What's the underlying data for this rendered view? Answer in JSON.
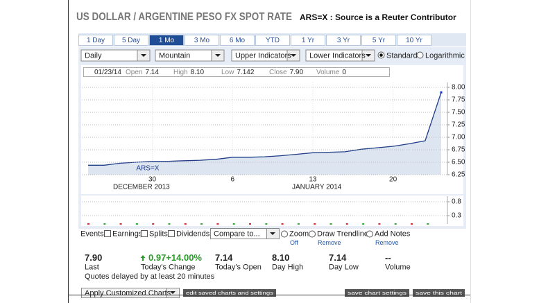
{
  "header": {
    "title": "US DOLLAR / ARGENTINE PESO FX SPOT RATE",
    "subtitle": "ARS=X : Source is a Reuter Contributor"
  },
  "ranges": [
    "1 Day",
    "5 Day",
    "1 Mo",
    "3 Mo",
    "6 Mo",
    "YTD",
    "1 Yr",
    "3 Yr",
    "5 Yr",
    "10 Yr"
  ],
  "selected_range_index": 2,
  "controls": {
    "frequency": "Daily",
    "chart_type": "Mountain",
    "upper": "Upper Indicators",
    "lower": "Lower Indicators",
    "scale_options": [
      "Standard",
      "Logarithmic"
    ]
  },
  "quote_bar": {
    "date": "01/23/14",
    "fields": [
      {
        "label": "Open",
        "value": "7.14"
      },
      {
        "label": "High",
        "value": "8.10"
      },
      {
        "label": "Low",
        "value": "7.142"
      },
      {
        "label": "Close",
        "value": "7.90"
      },
      {
        "label": "Volume",
        "value": "0"
      }
    ]
  },
  "chart_data": [
    {
      "type": "area",
      "series": [
        {
          "name": "ARS=X",
          "color": "#1f3c88",
          "values": [
            6.44,
            6.44,
            6.48,
            6.5,
            6.52,
            6.52,
            6.53,
            6.54,
            6.56,
            6.6,
            6.6,
            6.61,
            6.63,
            6.66,
            6.69,
            6.7,
            6.71,
            6.76,
            6.79,
            6.82,
            6.87,
            6.93,
            7.9
          ]
        }
      ],
      "categories": [
        null,
        null,
        null,
        null,
        "30",
        null,
        null,
        null,
        null,
        "6",
        null,
        null,
        null,
        null,
        "13",
        null,
        null,
        null,
        null,
        "20",
        null,
        null,
        null
      ],
      "month_labels": [
        "DECEMBER 2013",
        "JANUARY 2014"
      ],
      "ylim": [
        6.25,
        8.1
      ],
      "yticks": [
        {
          "value": 8,
          "label": "8.00"
        },
        7.75,
        {
          "value": 7.5,
          "label": "7.50"
        },
        7.25,
        {
          "value": 7,
          "label": "7.00"
        },
        6.75,
        {
          "value": 6.5,
          "label": "6.50"
        },
        6.25
      ],
      "grid": true
    },
    {
      "type": "bar",
      "ylim": [
        0,
        1
      ],
      "yticks": [
        0.8,
        0.3
      ],
      "grid": true
    }
  ],
  "events": {
    "label": "Events:",
    "checkboxes": [
      "Earnings",
      "Splits",
      "Dividends"
    ],
    "compare": "Compare to...",
    "tools": [
      {
        "label": "Zoom",
        "link": "Off"
      },
      {
        "label": "Draw Trendlines",
        "link": "Remove"
      },
      {
        "label": "Add Notes",
        "link": "Remove"
      }
    ]
  },
  "stats": [
    {
      "value": "7.90",
      "label": "Last"
    },
    {
      "value": "0.97+14.00%",
      "label": "Today's Change"
    },
    {
      "value": "7.14",
      "label": "Today's Open"
    },
    {
      "value": "8.10",
      "label": "Day High"
    },
    {
      "value": "7.14",
      "label": "Day Low"
    },
    {
      "value": "--",
      "label": "Volume"
    }
  ],
  "delay_note": "Quotes delayed by at least 20 minutes",
  "buttons": {
    "apply": "Apply Customized Charts",
    "edit": "edit saved charts and settings",
    "save_settings": "save chart settings",
    "save_chart": "save this chart"
  }
}
